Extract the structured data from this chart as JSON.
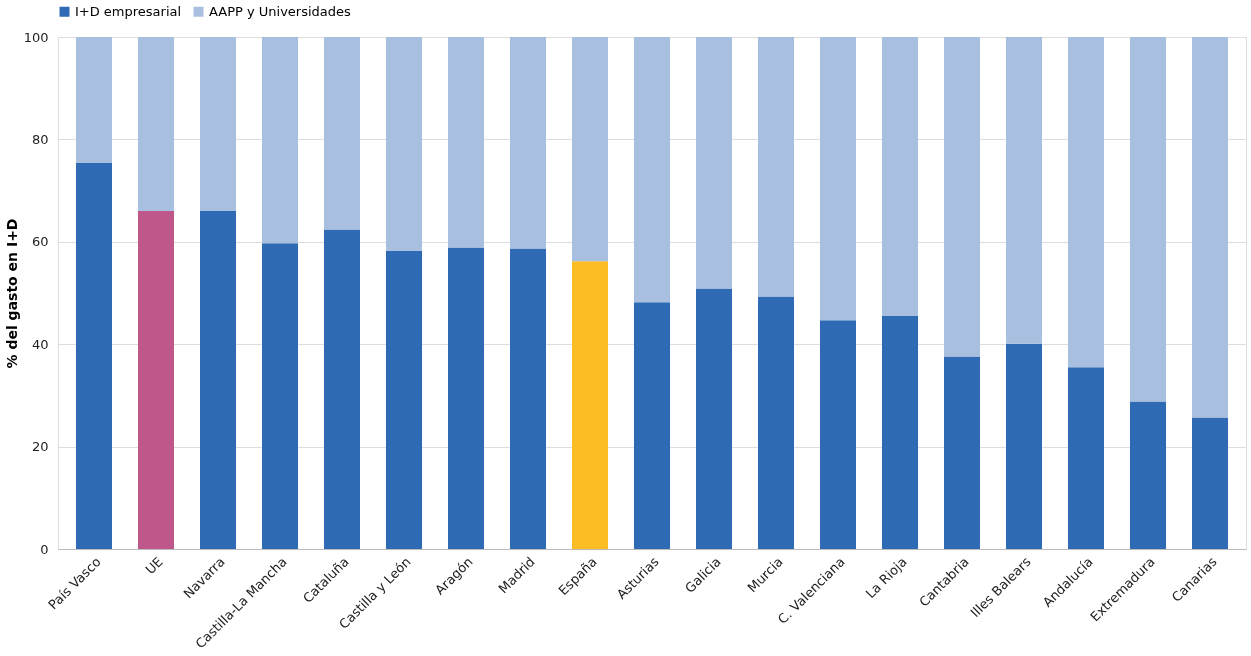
{
  "chart_data": {
    "type": "bar",
    "stacked": true,
    "ylabel": "% del gasto en I+D",
    "legend": "top",
    "grid": "y",
    "categories": [
      "País Vasco",
      "UE",
      "Navarra",
      "Castilla-La Mancha",
      "Cataluña",
      "Castilla y León",
      "Aragón",
      "Madrid",
      "España",
      "Asturias",
      "Galicia",
      "Murcia",
      "C. Valenciana",
      "La Rioja",
      "Cantabria",
      "Illes Balears",
      "Andalucía",
      "Extremadura",
      "Canarias"
    ],
    "series": [
      {
        "name": "I+D empresarial",
        "color": "#2f6ab4",
        "colors": [
          "#2f6ab4",
          "#c0578a",
          "#2f6ab4",
          "#2f6ab4",
          "#2f6ab4",
          "#2f6ab4",
          "#2f6ab4",
          "#2f6ab4",
          "#fbbd23",
          "#2f6ab4",
          "#2f6ab4",
          "#2f6ab4",
          "#2f6ab4",
          "#2f6ab4",
          "#2f6ab4",
          "#2f6ab4",
          "#2f6ab4",
          "#2f6ab4",
          "#2f6ab4"
        ],
        "values": [
          75.4,
          66.0,
          66.0,
          59.7,
          62.4,
          58.2,
          58.9,
          58.7,
          56.2,
          48.2,
          50.9,
          49.3,
          44.7,
          45.5,
          37.6,
          40.1,
          35.5,
          28.8,
          25.7
        ]
      },
      {
        "name": "AAPP y Universidades",
        "color": "#a9bfe0",
        "values": [
          24.6,
          34.0,
          34.0,
          40.3,
          37.6,
          41.8,
          41.1,
          41.3,
          43.8,
          51.8,
          49.1,
          50.7,
          55.3,
          54.5,
          62.4,
          59.9,
          64.5,
          71.2,
          74.3
        ]
      }
    ],
    "ylim": [
      0,
      100
    ],
    "yticks": [
      0,
      20,
      40,
      60,
      80,
      100
    ]
  }
}
